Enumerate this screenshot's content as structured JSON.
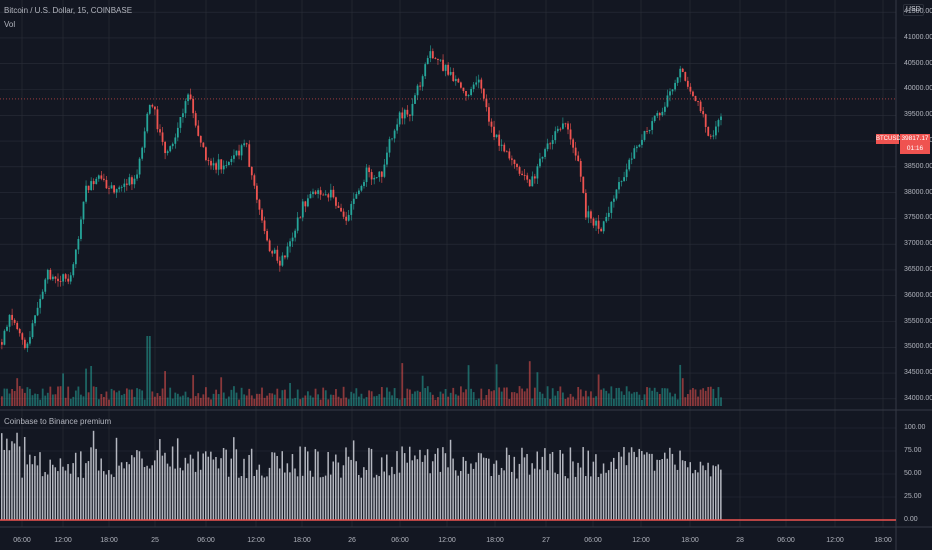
{
  "header": {
    "title": "Bitcoin / U.S. Dollar, 15, COINBASE",
    "volume_label": "Vol"
  },
  "indicator": {
    "title": "Coinbase to Binance premium"
  },
  "price_axis": {
    "currency": "USD",
    "ticker_tag": "BTCUSD",
    "last_price": "39817.17",
    "countdown": "01:16",
    "ticks": [
      "41500.00",
      "41000.00",
      "40500.00",
      "40000.00",
      "39500.00",
      "39000.00",
      "38500.00",
      "38000.00",
      "37500.00",
      "37000.00",
      "36500.00",
      "36000.00",
      "35500.00",
      "35000.00",
      "34500.00",
      "34000.00"
    ]
  },
  "indicator_axis": {
    "ticks": [
      "100.00",
      "75.00",
      "50.00",
      "25.00",
      "0.00"
    ]
  },
  "time_axis": {
    "labels": [
      "06:00",
      "12:00",
      "18:00",
      "25",
      "06:00",
      "12:00",
      "18:00",
      "26",
      "06:00",
      "12:00",
      "18:00",
      "27",
      "06:00",
      "12:00",
      "18:00",
      "28",
      "06:00",
      "12:00",
      "18:00"
    ]
  },
  "colors": {
    "background": "#131722",
    "up": "#26a69a",
    "down": "#ef5350",
    "grid": "#2a2e39",
    "premium_bar": "#d1d4dc",
    "zero_line": "#ef5350"
  },
  "chart_data": {
    "type": "candlestick",
    "interval": "15",
    "symbol": "BTCUSD",
    "exchange": "COINBASE",
    "price_range": [
      33900,
      41600
    ],
    "indicator_range": [
      0,
      100
    ],
    "price_path_keypoints": [
      [
        0,
        35100
      ],
      [
        10,
        35700
      ],
      [
        25,
        34900
      ],
      [
        45,
        36400
      ],
      [
        70,
        36300
      ],
      [
        85,
        38100
      ],
      [
        95,
        38300
      ],
      [
        115,
        38000
      ],
      [
        135,
        38300
      ],
      [
        150,
        39900
      ],
      [
        165,
        38600
      ],
      [
        188,
        39900
      ],
      [
        205,
        38600
      ],
      [
        225,
        38500
      ],
      [
        245,
        38900
      ],
      [
        265,
        37100
      ],
      [
        280,
        36600
      ],
      [
        295,
        37400
      ],
      [
        310,
        38100
      ],
      [
        330,
        38000
      ],
      [
        345,
        37500
      ],
      [
        365,
        38400
      ],
      [
        380,
        38300
      ],
      [
        395,
        39400
      ],
      [
        410,
        39600
      ],
      [
        430,
        40700
      ],
      [
        445,
        40400
      ],
      [
        465,
        39900
      ],
      [
        478,
        40200
      ],
      [
        490,
        39200
      ],
      [
        515,
        38500
      ],
      [
        530,
        38200
      ],
      [
        550,
        39000
      ],
      [
        565,
        39300
      ],
      [
        575,
        38800
      ],
      [
        585,
        37600
      ],
      [
        600,
        37300
      ],
      [
        620,
        38200
      ],
      [
        640,
        39100
      ],
      [
        660,
        39600
      ],
      [
        680,
        40400
      ],
      [
        695,
        39800
      ],
      [
        710,
        39000
      ],
      [
        725,
        39700
      ]
    ],
    "last_price": 39817.17
  }
}
